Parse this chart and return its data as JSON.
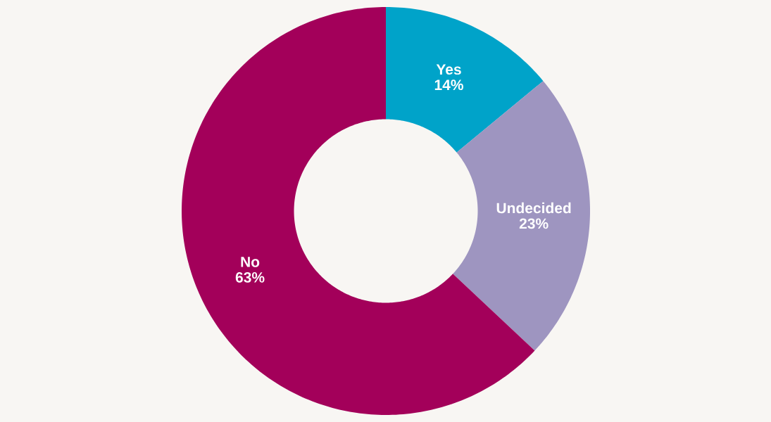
{
  "chart_data": {
    "type": "donut",
    "categories": [
      "Yes",
      "Undecided",
      "No"
    ],
    "values": [
      14,
      23,
      63
    ],
    "colors": [
      "#00a3c9",
      "#9e95c0",
      "#a3005a"
    ],
    "value_labels": [
      "14%",
      "23%",
      "63%"
    ]
  }
}
